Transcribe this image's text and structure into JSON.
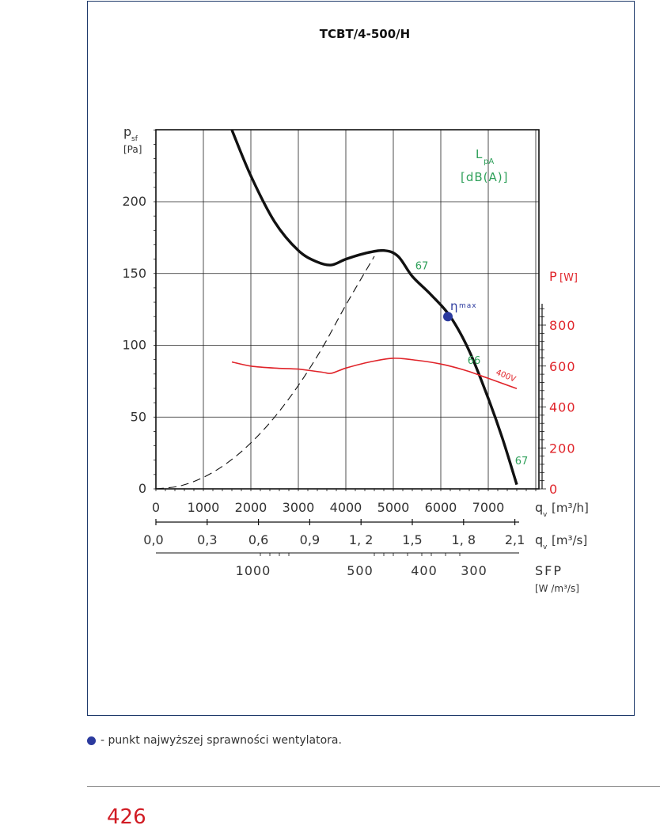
{
  "chart_data": {
    "type": "line",
    "title": "TCBT/4-500/H",
    "y_label_main": "p",
    "y_label_sub": "sf",
    "y_unit": "[Pa]",
    "ylim": [
      0,
      250
    ],
    "yticks": [
      0,
      50,
      100,
      150,
      200
    ],
    "xlim": [
      0,
      8000
    ],
    "x_ticks_m3h": [
      0,
      1000,
      2000,
      3000,
      4000,
      5000,
      6000,
      7000
    ],
    "x_label_m3h_main": "q",
    "x_label_m3h_sub": "v",
    "x_label_m3h_unit": "[m³/h]",
    "x_ticks_m3s": [
      "0,0",
      "0,3",
      "0,6",
      "0,9",
      "1, 2",
      "1,5",
      "1, 8",
      "2,1"
    ],
    "x_label_m3s_main": "q",
    "x_label_m3s_sub": "v",
    "x_label_m3s_unit": "[m³/s]",
    "sfp_ticks": [
      "1000",
      "500",
      "400",
      "300"
    ],
    "sfp_label": "SFP",
    "sfp_unit": "[W /m³/s]",
    "power_axis_label": "P",
    "power_axis_unit": "[W]",
    "power_ylim": [
      0,
      1200
    ],
    "power_ticks": [
      "0",
      "200",
      "400",
      "600",
      "800"
    ],
    "lpa_label_main": "L",
    "lpa_label_sub": "pA",
    "lpa_unit": "[dB(A)]",
    "series": [
      {
        "kind": "fan-curve",
        "x": [
          1600,
          2000,
          2500,
          3000,
          3400,
          3700,
          4000,
          4400,
          4800,
          5100,
          5400,
          5800,
          6200,
          6600,
          7000,
          7300,
          7600
        ],
        "y": [
          250,
          218,
          186,
          166,
          158,
          156,
          160,
          164,
          166,
          162,
          148,
          135,
          120,
          96,
          63,
          35,
          3
        ]
      },
      {
        "kind": "system-curve",
        "x": [
          0,
          500,
          1000,
          1500,
          2000,
          2500,
          3000,
          3500,
          4000,
          4600
        ],
        "y": [
          0,
          2,
          8,
          18,
          32,
          50,
          72,
          98,
          128,
          162
        ]
      },
      {
        "name": "400V",
        "kind": "power",
        "x": [
          1600,
          2000,
          2500,
          3000,
          3500,
          3700,
          4000,
          4500,
          5000,
          5500,
          6000,
          6500,
          7000,
          7600
        ],
        "y": [
          620,
          600,
          590,
          585,
          570,
          565,
          590,
          620,
          638,
          628,
          610,
          580,
          540,
          490
        ]
      }
    ],
    "noise_labels": [
      {
        "text": "67",
        "x": 5600,
        "y": 153
      },
      {
        "text": "66",
        "x": 6700,
        "y": 87
      },
      {
        "text": "67",
        "x": 7700,
        "y": 17
      }
    ],
    "eta_max": {
      "x": 6150,
      "y": 120,
      "label": "η",
      "label_sup": "max"
    },
    "grid": true,
    "colors": {
      "fan": "#111111",
      "power": "#e0242a",
      "noise": "#2fa05a",
      "eta": "#2b3a9e",
      "frame": "#1f3a6b"
    }
  },
  "footnote": "- punkt najwyższej sprawności wentylatora.",
  "page_number": "426"
}
